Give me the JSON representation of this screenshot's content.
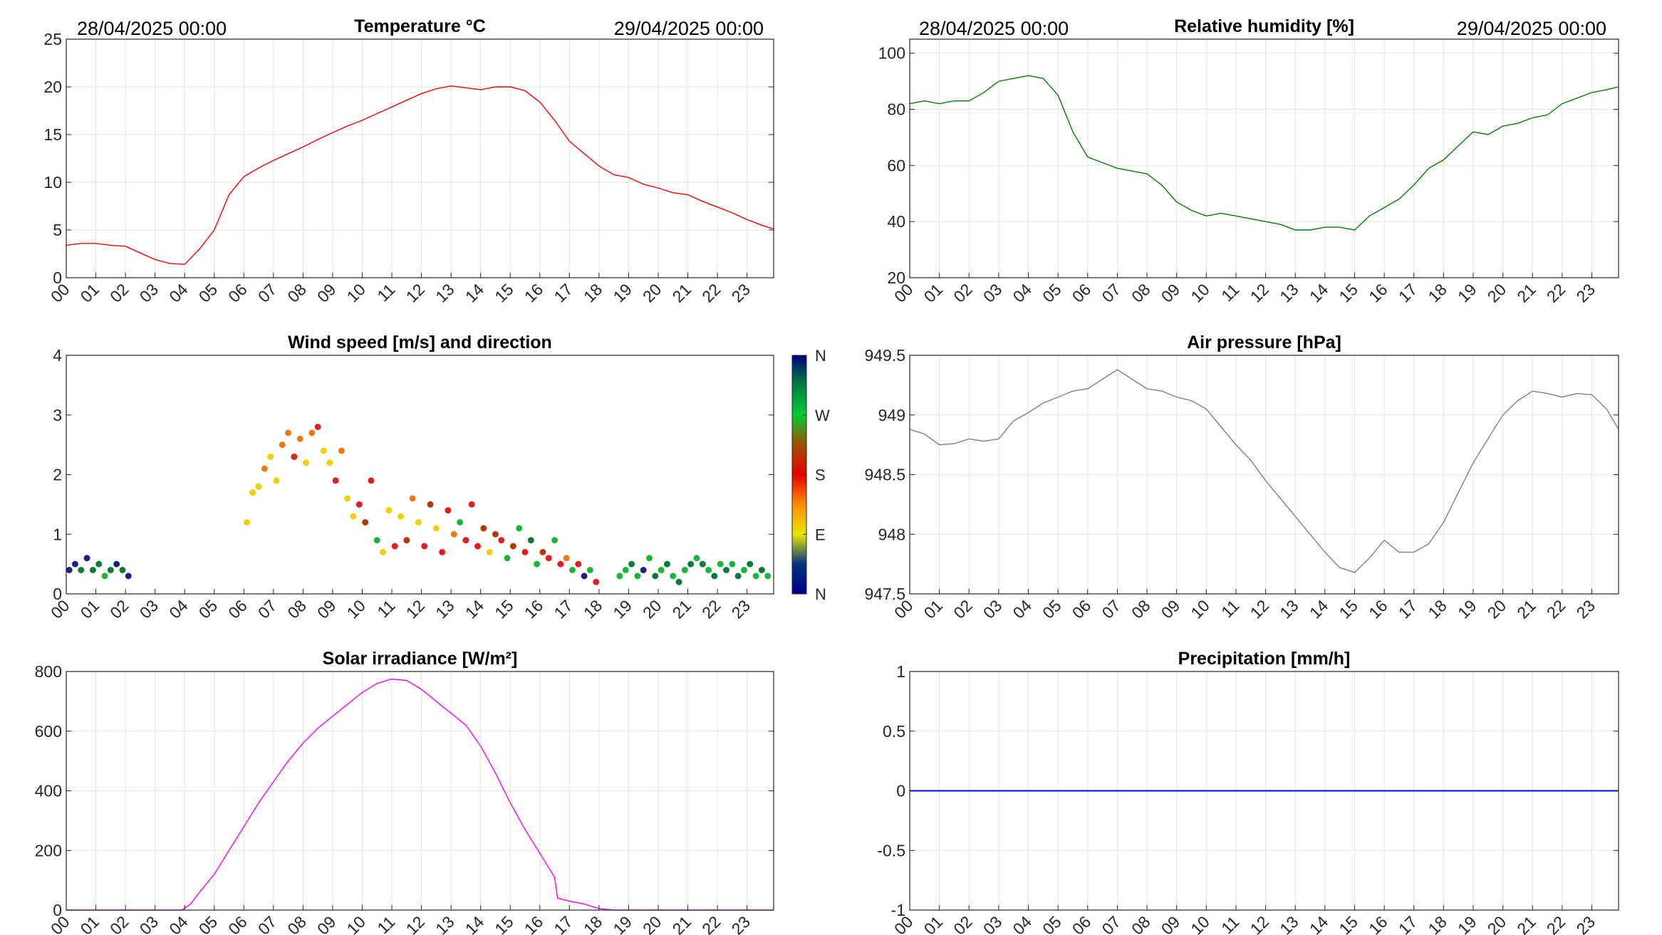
{
  "figure": {
    "date_start": "28/04/2025 00:00",
    "date_end": "29/04/2025 00:00",
    "hour_labels": [
      "00",
      "01",
      "02",
      "03",
      "04",
      "05",
      "06",
      "07",
      "08",
      "09",
      "10",
      "11",
      "12",
      "13",
      "14",
      "15",
      "16",
      "17",
      "18",
      "19",
      "20",
      "21",
      "22",
      "23"
    ]
  },
  "chart_data": [
    {
      "id": "temperature",
      "type": "line",
      "title": "Temperature °C",
      "color": "#ff0000",
      "ylim": [
        0,
        25
      ],
      "yticks": [
        0,
        5,
        10,
        15,
        20,
        25
      ],
      "ytick_labels": [
        "0",
        "5",
        "10",
        "15",
        "20",
        "25"
      ],
      "xlim": [
        0,
        23.9
      ],
      "grid": true,
      "x": [
        0,
        0.5,
        1,
        1.5,
        2,
        2.5,
        3,
        3.5,
        4,
        4.5,
        5,
        5.5,
        6,
        6.5,
        7,
        7.5,
        8,
        8.5,
        9,
        9.5,
        10,
        10.5,
        11,
        11.5,
        12,
        12.5,
        13,
        13.5,
        14,
        14.5,
        15,
        15.5,
        16,
        16.5,
        17,
        17.5,
        18,
        18.5,
        19,
        19.5,
        20,
        20.5,
        21,
        21.5,
        22,
        22.5,
        23,
        23.5,
        23.9
      ],
      "y": [
        3.4,
        3.6,
        3.6,
        3.4,
        3.3,
        2.6,
        1.9,
        1.5,
        1.4,
        3,
        5,
        8.7,
        10.6,
        11.5,
        12.3,
        13,
        13.7,
        14.5,
        15.2,
        15.9,
        16.5,
        17.2,
        17.9,
        18.6,
        19.3,
        19.8,
        20.1,
        19.9,
        19.7,
        20,
        20,
        19.6,
        18.4,
        16.5,
        14.3,
        13,
        11.7,
        10.8,
        10.5,
        9.8,
        9.4,
        8.9,
        8.7,
        8,
        7.4,
        6.8,
        6.1,
        5.5,
        5.1
      ]
    },
    {
      "id": "humidity",
      "type": "line",
      "title": "Relative humidity [%]",
      "color": "#008000",
      "ylim": [
        20,
        105
      ],
      "yticks": [
        20,
        40,
        60,
        80,
        100
      ],
      "ytick_labels": [
        "20",
        "40",
        "60",
        "80",
        "100"
      ],
      "xlim": [
        0,
        23.9
      ],
      "grid": true,
      "x": [
        0,
        0.5,
        1,
        1.5,
        2,
        2.5,
        3,
        3.5,
        4,
        4.5,
        5,
        5.5,
        6,
        6.5,
        7,
        7.5,
        8,
        8.5,
        9,
        9.5,
        10,
        10.5,
        11,
        11.5,
        12,
        12.5,
        13,
        13.5,
        14,
        14.5,
        15,
        15.5,
        16,
        16.5,
        17,
        17.5,
        18,
        18.5,
        19,
        19.5,
        20,
        20.5,
        21,
        21.5,
        22,
        22.5,
        23,
        23.5,
        23.9
      ],
      "y": [
        82,
        83,
        82,
        83,
        83,
        86,
        90,
        91,
        92,
        91,
        85,
        72,
        63,
        61,
        59,
        58,
        57,
        53,
        47,
        44,
        42,
        43,
        42,
        41,
        40,
        39,
        37,
        37,
        38,
        38,
        37,
        42,
        45,
        48,
        53,
        59,
        62,
        67,
        72,
        71,
        74,
        75,
        77,
        78,
        82,
        84,
        86,
        87,
        88
      ]
    },
    {
      "id": "wind",
      "type": "scatter",
      "title": "Wind speed [m/s] and direction",
      "ylim": [
        0,
        4
      ],
      "yticks": [
        0,
        1,
        2,
        3,
        4
      ],
      "ytick_labels": [
        "0",
        "1",
        "2",
        "3",
        "4"
      ],
      "xlim": [
        0,
        23.9
      ],
      "grid": false,
      "colorbar": {
        "labels": [
          "N",
          "E",
          "S",
          "W",
          "N"
        ],
        "stops": [
          "#00008b",
          "#00327f",
          "#e6e600",
          "#ff8c00",
          "#e60000",
          "#a05000",
          "#00cc33",
          "#008040",
          "#000080"
        ]
      },
      "x": [
        0.1,
        0.3,
        0.5,
        0.7,
        0.9,
        1.1,
        1.3,
        1.5,
        1.7,
        1.9,
        2.1,
        6.1,
        6.3,
        6.5,
        6.7,
        6.9,
        7.1,
        7.3,
        7.5,
        7.7,
        7.9,
        8.1,
        8.3,
        8.5,
        8.7,
        8.9,
        9.1,
        9.3,
        9.5,
        9.7,
        9.9,
        10.1,
        10.3,
        10.5,
        10.7,
        10.9,
        11.1,
        11.3,
        11.5,
        11.7,
        11.9,
        12.1,
        12.3,
        12.5,
        12.7,
        12.9,
        13.1,
        13.3,
        13.5,
        13.7,
        13.9,
        14.1,
        14.3,
        14.5,
        14.7,
        14.9,
        15.1,
        15.3,
        15.5,
        15.7,
        15.9,
        16.1,
        16.3,
        16.5,
        16.7,
        16.9,
        17.1,
        17.3,
        17.5,
        17.7,
        17.9,
        18.7,
        18.9,
        19.1,
        19.3,
        19.5,
        19.7,
        19.9,
        20.1,
        20.3,
        20.5,
        20.7,
        20.9,
        21.1,
        21.3,
        21.5,
        21.7,
        21.9,
        22.1,
        22.3,
        22.5,
        22.7,
        22.9,
        23.1,
        23.3,
        23.5,
        23.7
      ],
      "y": [
        0.4,
        0.5,
        0.4,
        0.6,
        0.4,
        0.5,
        0.3,
        0.4,
        0.5,
        0.4,
        0.3,
        1.2,
        1.7,
        1.8,
        2.1,
        2.3,
        1.9,
        2.5,
        2.7,
        2.3,
        2.6,
        2.2,
        2.7,
        2.8,
        2.4,
        2.2,
        1.9,
        2.4,
        1.6,
        1.3,
        1.5,
        1.2,
        1.9,
        0.9,
        0.7,
        1.4,
        0.8,
        1.3,
        0.9,
        1.6,
        1.2,
        0.8,
        1.5,
        1.1,
        0.7,
        1.4,
        1,
        1.2,
        0.9,
        1.5,
        0.8,
        1.1,
        0.7,
        1,
        0.9,
        0.6,
        0.8,
        1.1,
        0.7,
        0.9,
        0.5,
        0.7,
        0.6,
        0.9,
        0.5,
        0.6,
        0.4,
        0.5,
        0.3,
        0.4,
        0.2,
        0.3,
        0.4,
        0.5,
        0.3,
        0.4,
        0.6,
        0.3,
        0.4,
        0.5,
        0.3,
        0.2,
        0.4,
        0.5,
        0.6,
        0.5,
        0.4,
        0.3,
        0.5,
        0.4,
        0.5,
        0.3,
        0.4,
        0.5,
        0.3,
        0.4,
        0.3
      ],
      "direction": [
        "N",
        "N",
        "NW",
        "N",
        "NW",
        "NW",
        "W",
        "NW",
        "N",
        "NW",
        "N",
        "E",
        "E",
        "E",
        "SE",
        "E",
        "E",
        "SE",
        "SE",
        "S",
        "SE",
        "E",
        "SE",
        "S",
        "E",
        "E",
        "S",
        "SE",
        "E",
        "E",
        "S",
        "SW",
        "S",
        "W",
        "E",
        "E",
        "S",
        "E",
        "SW",
        "SE",
        "E",
        "S",
        "SW",
        "E",
        "S",
        "S",
        "SE",
        "W",
        "S",
        "S",
        "S",
        "SW",
        "E",
        "SW",
        "S",
        "W",
        "SW",
        "W",
        "S",
        "NW",
        "W",
        "SW",
        "S",
        "W",
        "S",
        "SE",
        "W",
        "S",
        "N",
        "W",
        "S",
        "W",
        "W",
        "NW",
        "W",
        "N",
        "W",
        "NW",
        "W",
        "NW",
        "W",
        "NW",
        "W",
        "NW",
        "W",
        "NW",
        "W",
        "NW",
        "W",
        "NW",
        "W",
        "NW",
        "W",
        "NW",
        "W",
        "NW",
        "W"
      ]
    },
    {
      "id": "pressure",
      "type": "line",
      "title": "Air pressure [hPa]",
      "color": "#808080",
      "ylim": [
        947.5,
        949.5
      ],
      "yticks": [
        947.5,
        948,
        948.5,
        949,
        949.5
      ],
      "ytick_labels": [
        "947.5",
        "948",
        "948.5",
        "949",
        "949.5"
      ],
      "xlim": [
        0,
        23.9
      ],
      "grid": true,
      "x": [
        0,
        0.5,
        1,
        1.5,
        2,
        2.5,
        3,
        3.5,
        4,
        4.5,
        5,
        5.5,
        6,
        6.5,
        7,
        7.5,
        8,
        8.5,
        9,
        9.5,
        10,
        10.5,
        11,
        11.5,
        12,
        12.5,
        13,
        13.5,
        14,
        14.5,
        15,
        15.5,
        16,
        16.5,
        17,
        17.5,
        18,
        18.5,
        19,
        19.5,
        20,
        20.5,
        21,
        21.5,
        22,
        22.5,
        23,
        23.5,
        23.9
      ],
      "y": [
        948.88,
        948.84,
        948.75,
        948.76,
        948.8,
        948.78,
        948.8,
        948.95,
        949.02,
        949.1,
        949.15,
        949.2,
        949.22,
        949.3,
        949.38,
        949.3,
        949.22,
        949.2,
        949.15,
        949.12,
        949.05,
        948.9,
        948.75,
        948.62,
        948.45,
        948.3,
        948.15,
        948,
        947.85,
        947.72,
        947.68,
        947.8,
        947.95,
        947.85,
        947.85,
        947.92,
        948.1,
        948.35,
        948.6,
        948.8,
        949,
        949.12,
        949.2,
        949.18,
        949.15,
        949.18,
        949.17,
        949.05,
        948.88
      ]
    },
    {
      "id": "solar",
      "type": "line",
      "title": "Solar irradiance [W/m²]",
      "color": "#ff00ff",
      "ylim": [
        0,
        800
      ],
      "yticks": [
        0,
        200,
        400,
        600,
        800
      ],
      "ytick_labels": [
        "0",
        "200",
        "400",
        "600",
        "800"
      ],
      "xlim": [
        0,
        23.9
      ],
      "grid": true,
      "x": [
        0,
        1,
        2,
        3,
        3.9,
        4.2,
        4.5,
        5,
        5.5,
        6,
        6.5,
        7,
        7.5,
        8,
        8.5,
        9,
        9.5,
        10,
        10.5,
        11,
        11.5,
        12,
        12.5,
        13,
        13.5,
        14,
        14.5,
        15,
        15.5,
        16,
        16.5,
        16.6,
        17,
        17.5,
        18,
        18.5,
        19,
        20,
        21,
        22,
        23,
        23.9
      ],
      "y": [
        0,
        0,
        0,
        0,
        0,
        20,
        60,
        120,
        200,
        280,
        360,
        430,
        500,
        560,
        610,
        650,
        690,
        730,
        760,
        775,
        770,
        740,
        700,
        660,
        620,
        550,
        460,
        360,
        270,
        190,
        110,
        40,
        30,
        20,
        5,
        0,
        0,
        0,
        0,
        0,
        0,
        0
      ]
    },
    {
      "id": "precipitation",
      "type": "line",
      "title": "Precipitation [mm/h]",
      "color": "#0000ff",
      "ylim": [
        -1,
        1
      ],
      "yticks": [
        -1,
        -0.5,
        0,
        0.5,
        1
      ],
      "ytick_labels": [
        "-1",
        "-0.5",
        "0",
        "0.5",
        "1"
      ],
      "xlim": [
        0,
        23.9
      ],
      "grid": true,
      "x": [
        0,
        23.9
      ],
      "y": [
        0,
        0
      ]
    }
  ]
}
